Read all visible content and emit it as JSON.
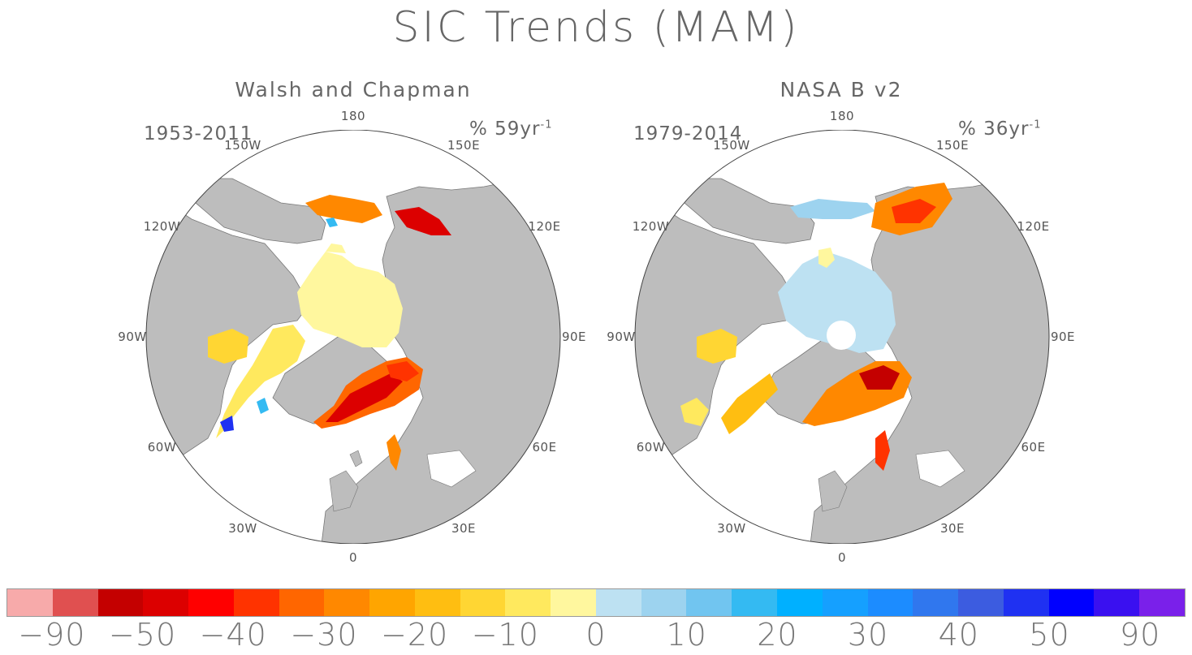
{
  "title": "SIC Trends (MAM)",
  "panels": [
    {
      "title": "Walsh and Chapman",
      "period": "1953-2011",
      "units_base": "% 59yr",
      "units_sup": "-1",
      "lon_labels": [
        "180",
        "150E",
        "120E",
        "90E",
        "60E",
        "30E",
        "0",
        "30W",
        "60W",
        "90W",
        "120W",
        "150W"
      ]
    },
    {
      "title": "NASA B v2",
      "period": "1979-2014",
      "units_base": "% 36yr",
      "units_sup": "-1",
      "lon_labels": [
        "180",
        "150E",
        "120E",
        "90E",
        "60E",
        "30E",
        "0",
        "30W",
        "60W",
        "90W",
        "120W",
        "150W"
      ]
    }
  ],
  "colorbar": {
    "colors": [
      "#f7aaaa",
      "#e05050",
      "#c40000",
      "#dc0000",
      "#ff0000",
      "#ff3300",
      "#ff6600",
      "#ff8800",
      "#ffa500",
      "#ffbe11",
      "#ffd633",
      "#ffe95e",
      "#fff79e",
      "#bde1f2",
      "#9dd3ef",
      "#71c5f0",
      "#34baf2",
      "#00b0ff",
      "#15a0ff",
      "#1c8cff",
      "#3077ee",
      "#3c5ce0",
      "#1f31f2",
      "#0000ff",
      "#3a10f0",
      "#7a20ea"
    ],
    "labels": [
      "−90",
      "−50",
      "−40",
      "−30",
      "−20",
      "−10",
      "0",
      "10",
      "20",
      "30",
      "40",
      "50",
      "90"
    ]
  },
  "icons": {
    "map_shading": "polar-stereographic-arctic"
  }
}
